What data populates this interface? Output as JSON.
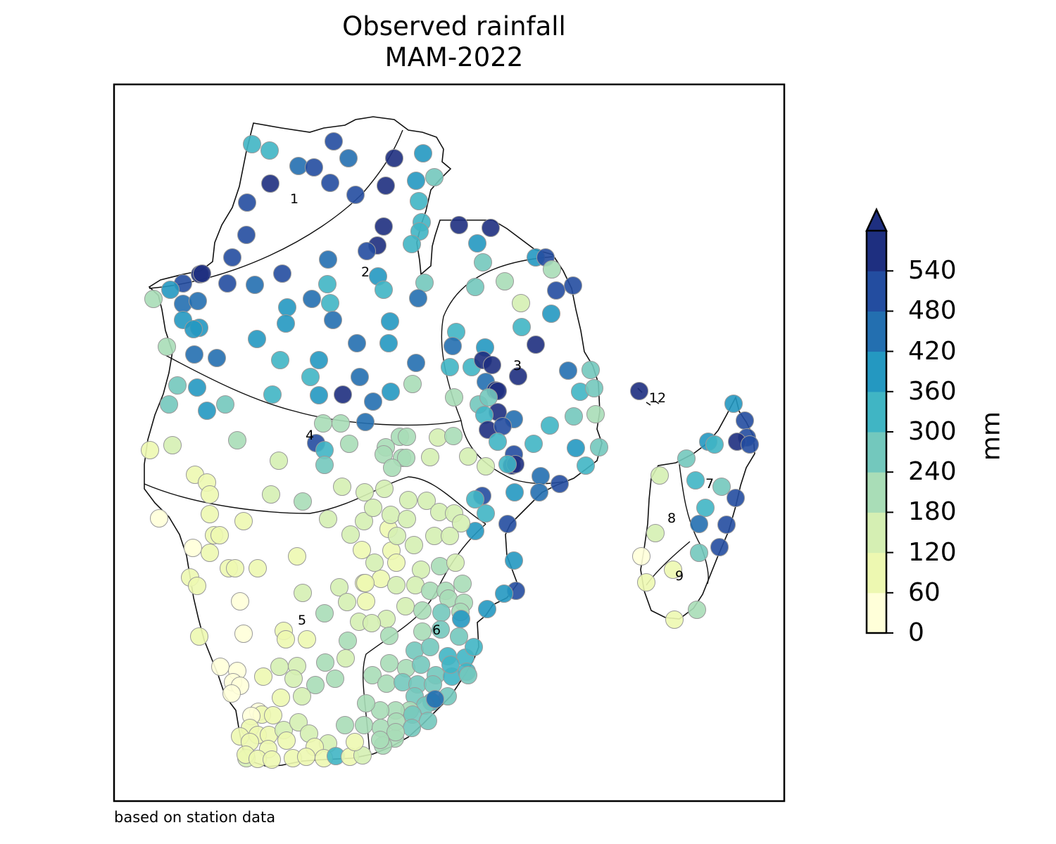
{
  "title": {
    "line1": "Observed rainfall",
    "line2": "MAM-2022"
  },
  "credit": "based on station data",
  "colorbar": {
    "unit": "mm",
    "ticks": [
      "0",
      "60",
      "120",
      "180",
      "240",
      "300",
      "360",
      "420",
      "480",
      "540"
    ],
    "levels": [
      0,
      60,
      120,
      180,
      240,
      300,
      360,
      420,
      480,
      540,
      600
    ],
    "colors": [
      "#ffffd9",
      "#edf8b1",
      "#d5efb3",
      "#a9ddb7",
      "#73c8bd",
      "#40b5c4",
      "#2498c1",
      "#236fb0",
      "#234da0",
      "#1e2f80"
    ],
    "extend_color": "#1e2f80"
  },
  "regions": [
    {
      "id": "1",
      "label": "1"
    },
    {
      "id": "2",
      "label": "2"
    },
    {
      "id": "3",
      "label": "3"
    },
    {
      "id": "4",
      "label": "4"
    },
    {
      "id": "5",
      "label": "5"
    },
    {
      "id": "6",
      "label": "6"
    },
    {
      "id": "7",
      "label": "7"
    },
    {
      "id": "8",
      "label": "8"
    },
    {
      "id": "9",
      "label": "9"
    },
    {
      "id": "12",
      "label": "12"
    }
  ]
}
